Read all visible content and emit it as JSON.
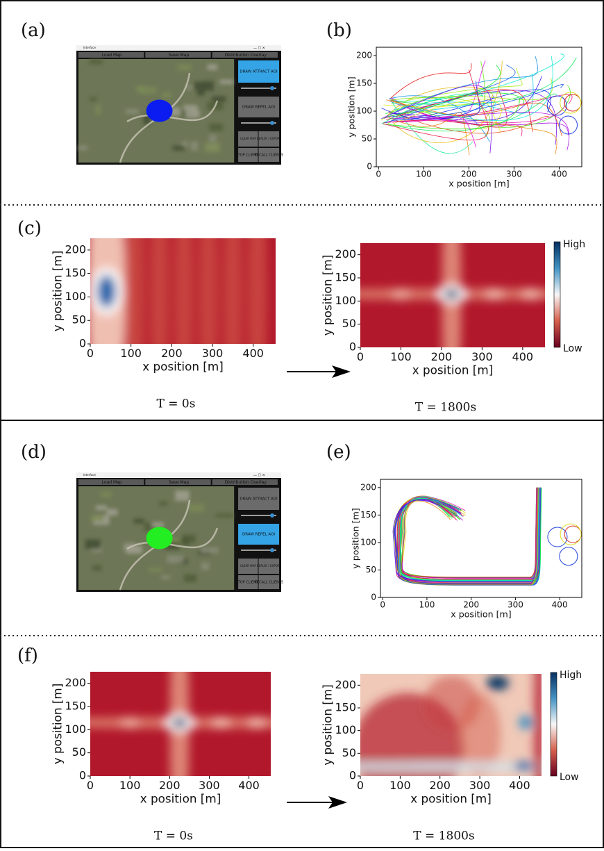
{
  "panels": {
    "a": {
      "label": "(a)",
      "window_title": "Interface",
      "menu": [
        "Load Map",
        "Save Map",
        "Distribution Overlay"
      ],
      "buttons": [
        "DRAW ATTRACT AOI",
        "DRAW REPEL AOI",
        "CLEAR MAP",
        "DEPLOY / EXPORT",
        "STOP CLIENTS",
        "RECALL CLIENTS"
      ],
      "sliders": [
        20,
        15
      ],
      "aoi_color": "#0a1cf0",
      "active_button": 0
    },
    "b": {
      "label": "(b)",
      "xlabel": "x position [m]",
      "ylabel": "y position [m]",
      "xlim": [
        -5,
        450
      ],
      "ylim": [
        0,
        215
      ],
      "xticks": [
        0,
        100,
        200,
        300,
        400
      ],
      "yticks": [
        0,
        50,
        100,
        150,
        200
      ]
    },
    "c": {
      "label": "(c)",
      "maps": [
        {
          "xlabel": "x position [m]",
          "ylabel": "y position [m]",
          "xlim": [
            0,
            455
          ],
          "ylim": [
            0,
            225
          ],
          "xticks": [
            0,
            100,
            200,
            300,
            400
          ],
          "yticks": [
            0,
            50,
            100,
            150,
            200
          ],
          "time": "T = 0s"
        },
        {
          "xlabel": "x position [m]",
          "ylabel": "y position [m]",
          "xlim": [
            0,
            455
          ],
          "ylim": [
            0,
            225
          ],
          "xticks": [
            0,
            100,
            200,
            300,
            400
          ],
          "yticks": [
            0,
            50,
            100,
            150,
            200
          ],
          "time": "T = 1800s",
          "colorbar": [
            "High",
            "Low"
          ]
        }
      ]
    },
    "d": {
      "label": "(d)",
      "window_title": "Interface",
      "menu": [
        "Load Map",
        "Save Map",
        "Distribution Overlay"
      ],
      "buttons": [
        "DRAW ATTRACT AOI",
        "DRAW REPEL AOI",
        "CLEAR MAP",
        "DEPLOY / EXPORT",
        "STOP CLIENTS",
        "RECALL CLIENTS"
      ],
      "sliders": [
        15,
        20
      ],
      "aoi_color": "#22ee22",
      "active_button": 1
    },
    "e": {
      "label": "(e)",
      "xlabel": "x position [m]",
      "ylabel": "y position [m]",
      "xlim": [
        -5,
        450
      ],
      "ylim": [
        0,
        215
      ],
      "xticks": [
        0,
        100,
        200,
        300,
        400
      ],
      "yticks": [
        0,
        50,
        100,
        150,
        200
      ]
    },
    "f": {
      "label": "(f)",
      "maps": [
        {
          "xlabel": "x position [m]",
          "ylabel": "y position [m]",
          "xlim": [
            0,
            455
          ],
          "ylim": [
            0,
            225
          ],
          "xticks": [
            0,
            100,
            200,
            300,
            400
          ],
          "yticks": [
            0,
            50,
            100,
            150,
            200
          ],
          "time": "T = 0s"
        },
        {
          "xlabel": "x position [m]",
          "ylabel": "y position [m]",
          "xlim": [
            0,
            455
          ],
          "ylim": [
            0,
            225
          ],
          "xticks": [
            0,
            100,
            200,
            300,
            400
          ],
          "yticks": [
            0,
            50,
            100,
            150,
            200
          ],
          "time": "T = 1800s",
          "colorbar": [
            "High",
            "Low"
          ]
        }
      ]
    }
  }
}
